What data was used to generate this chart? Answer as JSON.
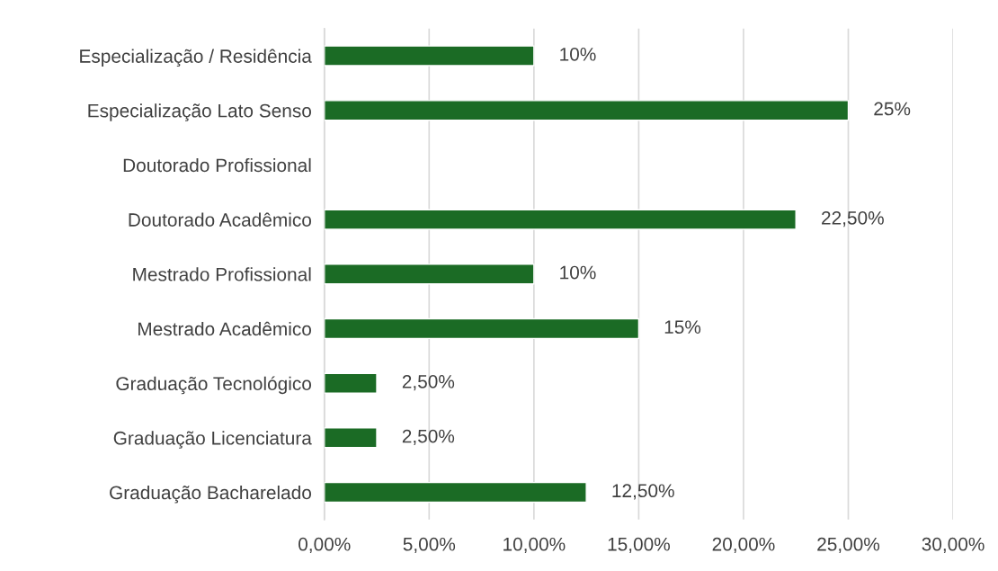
{
  "chart_data": {
    "type": "bar",
    "orientation": "horizontal",
    "categories": [
      "Especialização / Residência",
      "Especialização Lato Senso",
      "Doutorado Profissional",
      "Doutorado Acadêmico",
      "Mestrado Profissional",
      "Mestrado Acadêmico",
      "Graduação Tecnológico",
      "Graduação Licenciatura",
      "Graduação Bacharelado"
    ],
    "values": [
      10,
      25,
      null,
      22.5,
      10,
      15,
      2.5,
      2.5,
      12.5
    ],
    "value_labels": [
      "10%",
      "25%",
      null,
      "22,50%",
      "10%",
      "15%",
      "2,50%",
      "2,50%",
      "12,50%"
    ],
    "color": "#1b6b25",
    "xlim": [
      0,
      30
    ],
    "xticks": [
      {
        "value": 0,
        "label": "0,00%"
      },
      {
        "value": 5,
        "label": "5,00%"
      },
      {
        "value": 10,
        "label": "10,00%"
      },
      {
        "value": 15,
        "label": "15,00%"
      },
      {
        "value": 20,
        "label": "20,00%"
      },
      {
        "value": 25,
        "label": "25,00%"
      },
      {
        "value": 30,
        "label": "30,00%"
      }
    ],
    "grid": "x"
  }
}
